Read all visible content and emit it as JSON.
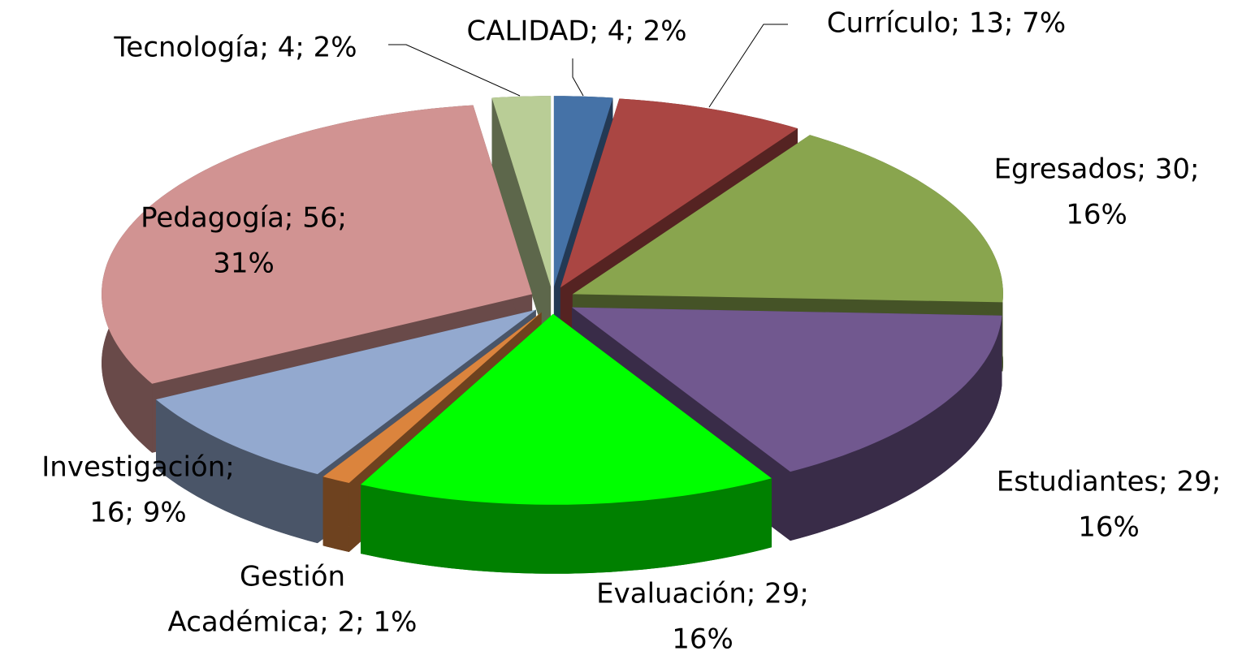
{
  "chart_data": {
    "type": "pie3d",
    "labels": [
      [
        "CALIDAD; 4; 2%"
      ],
      [
        "Currículo; 13; 7%"
      ],
      [
        "Egresados; 30;",
        "16%"
      ],
      [
        "Estudiantes; 29;",
        "16%"
      ],
      [
        "Evaluación; 29;",
        "16%"
      ],
      [
        "Gestión",
        "Académica; 2; 1%"
      ],
      [
        "Investigación;",
        "16; 9%"
      ],
      [
        "Pedagogía; 56;",
        "31%"
      ],
      [
        "Tecnología; 4; 2%"
      ]
    ],
    "values": [
      4,
      13,
      30,
      29,
      29,
      2,
      16,
      56,
      4
    ],
    "colors": [
      "#4572a7",
      "#aa4643",
      "#89a54e",
      "#71588f",
      "#00ff00",
      "#db843d",
      "#93a9cf",
      "#d19392",
      "#b9cd96"
    ]
  }
}
